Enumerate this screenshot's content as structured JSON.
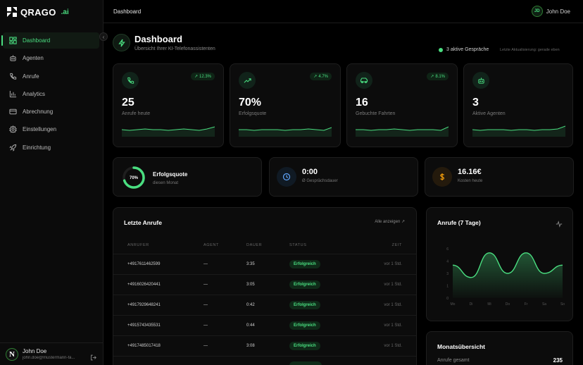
{
  "brand": {
    "name": "QRAGO",
    "suffix": ".ai"
  },
  "sidebar": {
    "items": [
      {
        "label": "Dashboard",
        "icon": "dashboard-icon",
        "active": true
      },
      {
        "label": "Agenten",
        "icon": "bot-icon"
      },
      {
        "label": "Anrufe",
        "icon": "phone-icon"
      },
      {
        "label": "Analytics",
        "icon": "bar-chart-icon"
      },
      {
        "label": "Abrechnung",
        "icon": "credit-card-icon"
      },
      {
        "label": "Einstellungen",
        "icon": "gear-icon"
      },
      {
        "label": "Einrichtung",
        "icon": "rocket-icon"
      }
    ],
    "user": {
      "initial": "N",
      "name": "John Doe",
      "email": "john.doe@mustermann-fa..."
    }
  },
  "topbar": {
    "title": "Dashboard",
    "user_initials": "JD",
    "user_name": "John Doe"
  },
  "header": {
    "title": "Dashboard",
    "subtitle": "Übersicht Ihrer KI-Telefonassistenten",
    "active_calls": "3 aktive Gespräche",
    "last_update": "Letzte Aktualisierung: gerade eben"
  },
  "stats": [
    {
      "value": "25",
      "label": "Anrufe heute",
      "trend": "12.3%",
      "icon": "phone-icon",
      "spark": [
        0.5,
        0.55,
        0.5,
        0.45,
        0.5,
        0.5,
        0.55,
        0.5,
        0.45,
        0.5,
        0.55,
        0.45,
        0.3
      ]
    },
    {
      "value": "70%",
      "label": "Erfolgsquote",
      "trend": "4.7%",
      "icon": "trending-up-icon",
      "spark": [
        0.5,
        0.5,
        0.55,
        0.5,
        0.5,
        0.5,
        0.55,
        0.5,
        0.5,
        0.45,
        0.5,
        0.55,
        0.35
      ]
    },
    {
      "value": "16",
      "label": "Gebuchte Fahrten",
      "trend": "8.1%",
      "icon": "car-icon",
      "spark": [
        0.5,
        0.5,
        0.55,
        0.5,
        0.5,
        0.45,
        0.5,
        0.55,
        0.5,
        0.5,
        0.5,
        0.55,
        0.3
      ]
    },
    {
      "value": "3",
      "label": "Aktive Agenten",
      "trend": "",
      "icon": "bot-icon",
      "spark": [
        0.5,
        0.55,
        0.5,
        0.5,
        0.5,
        0.55,
        0.5,
        0.5,
        0.55,
        0.5,
        0.5,
        0.45,
        0.25
      ]
    }
  ],
  "mini": {
    "success": {
      "ring_label": "70%",
      "ring_value": 0.7,
      "title": "Erfolgsquote",
      "sub": "diesen Monat"
    },
    "duration": {
      "value": "0:00",
      "label": "Ø Gesprächsdauer",
      "icon": "clock-icon"
    },
    "cost": {
      "value": "16.16€",
      "label": "Kosten heute",
      "icon": "dollar-icon"
    }
  },
  "calls": {
    "title": "Letzte Anrufe",
    "view_all": "Alle anzeigen",
    "headers": [
      "ANRUFER",
      "AGENT",
      "DAUER",
      "STATUS",
      "ZEIT"
    ],
    "rows": [
      {
        "caller": "+4917611462599",
        "agent": "—",
        "duration": "3:35",
        "status": "Erfolgreich",
        "time": "vor 1 Std."
      },
      {
        "caller": "+4916026420441",
        "agent": "—",
        "duration": "3:05",
        "status": "Erfolgreich",
        "time": "vor 1 Std."
      },
      {
        "caller": "+4917929648241",
        "agent": "—",
        "duration": "0:42",
        "status": "Erfolgreich",
        "time": "vor 1 Std."
      },
      {
        "caller": "+4915743435531",
        "agent": "—",
        "duration": "0:44",
        "status": "Erfolgreich",
        "time": "vor 1 Std."
      },
      {
        "caller": "+4917485017418",
        "agent": "—",
        "duration": "3:08",
        "status": "Erfolgreich",
        "time": "vor 1 Std."
      }
    ]
  },
  "chart_data": {
    "type": "area",
    "title": "Anrufe (7 Tage)",
    "categories": [
      "Mo",
      "Di",
      "Mi",
      "Do",
      "Fr",
      "Sa",
      "So"
    ],
    "values": [
      4,
      2.5,
      5.5,
      3,
      5.5,
      3,
      4
    ],
    "ylim": [
      0,
      6
    ],
    "yticks": [
      "0",
      "1",
      "3",
      "4",
      "6"
    ],
    "color": "#4ade80"
  },
  "month": {
    "title": "Monatsübersicht",
    "total_label": "Anrufe gesamt",
    "total_value": "235"
  },
  "colors": {
    "accent": "#4ade80",
    "background": "#000000",
    "card": "#0c0c0c"
  }
}
